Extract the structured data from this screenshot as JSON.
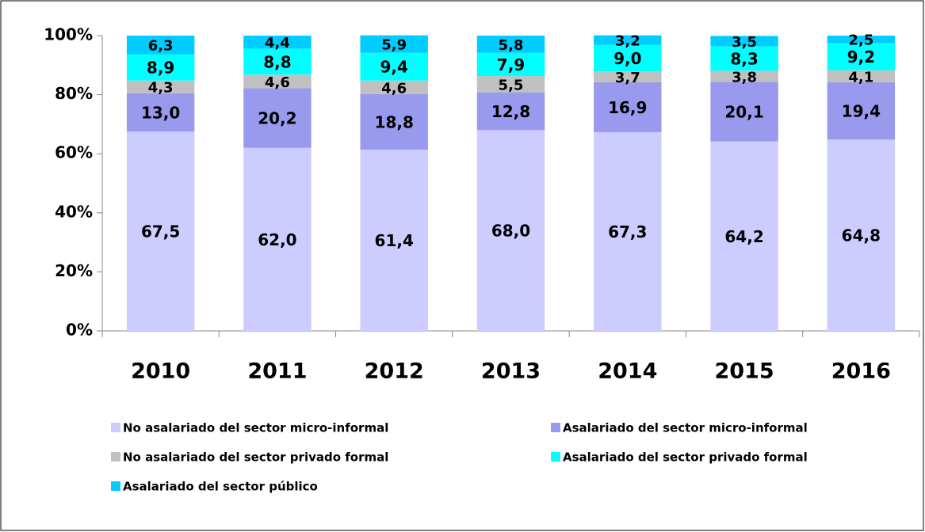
{
  "chart_data": {
    "type": "stacked_bar",
    "categories": [
      "2010",
      "2011",
      "2012",
      "2013",
      "2014",
      "2015",
      "2016"
    ],
    "series": [
      {
        "name": "No asalariado del sector micro-informal",
        "color": "#ccccff",
        "values": [
          67.5,
          62.0,
          61.4,
          68.0,
          67.3,
          64.2,
          64.8
        ],
        "value_labels": [
          "67,5",
          "62,0",
          "61,4",
          "68,0",
          "67,3",
          "64,2",
          "64,8"
        ]
      },
      {
        "name": "Asalariado del sector micro-informal",
        "color": "#9999ee",
        "values": [
          13.0,
          20.2,
          18.8,
          12.8,
          16.9,
          20.1,
          19.4
        ],
        "value_labels": [
          "13,0",
          "20,2",
          "18,8",
          "12,8",
          "16,9",
          "20,1",
          "19,4"
        ]
      },
      {
        "name": "No asalariado del sector privado formal",
        "color": "#c0c0c0",
        "values": [
          4.3,
          4.6,
          4.6,
          5.5,
          3.7,
          3.8,
          4.1
        ],
        "value_labels": [
          "4,3",
          "4,6",
          "4,6",
          "5,5",
          "3,7",
          "3,8",
          "4,1"
        ]
      },
      {
        "name": "Asalariado del sector privado formal",
        "color": "#00ffff",
        "values": [
          8.9,
          8.8,
          9.4,
          7.9,
          9.0,
          8.3,
          9.2
        ],
        "value_labels": [
          "8,9",
          "8,8",
          "9,4",
          "7,9",
          "9,0",
          "8,3",
          "9,2"
        ]
      },
      {
        "name": "Asalariado del sector público",
        "color": "#00ccff",
        "values": [
          6.3,
          4.4,
          5.9,
          5.8,
          3.2,
          3.5,
          2.5
        ],
        "value_labels": [
          "6,3",
          "4,4",
          "5,9",
          "5,8",
          "3,2",
          "3,5",
          "2,5"
        ]
      }
    ],
    "ylim": [
      0,
      100
    ],
    "yticks": [
      {
        "value": 0,
        "label": "0%"
      },
      {
        "value": 20,
        "label": "20%"
      },
      {
        "value": 40,
        "label": "40%"
      },
      {
        "value": 60,
        "label": "60%"
      },
      {
        "value": 80,
        "label": "80%"
      },
      {
        "value": 100,
        "label": "100%"
      }
    ],
    "legend": "bottom"
  }
}
